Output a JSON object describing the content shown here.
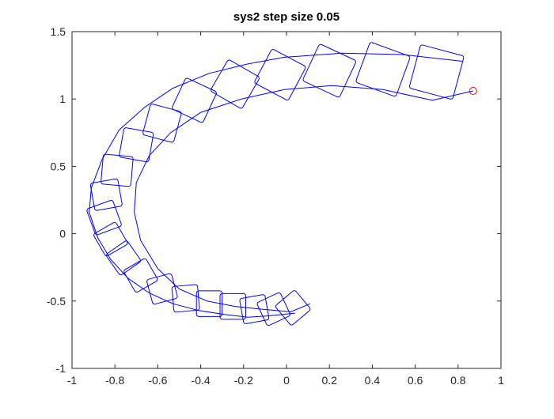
{
  "chart_data": {
    "type": "line",
    "title": "sys2 step size 0.05",
    "xlabel": "",
    "ylabel": "",
    "xlim": [
      -1,
      1
    ],
    "ylim": [
      -1,
      1.5
    ],
    "xticks": [
      -1,
      -0.8,
      -0.6,
      -0.4,
      -0.2,
      0,
      0.2,
      0.4,
      0.6,
      0.8,
      1
    ],
    "xtick_labels": [
      "-1",
      "-0.8",
      "-0.6",
      "-0.4",
      "-0.2",
      "0",
      "0.2",
      "0.4",
      "0.6",
      "0.8",
      "1"
    ],
    "yticks": [
      -1,
      -0.5,
      0,
      0.5,
      1,
      1.5
    ],
    "ytick_labels": [
      "-1",
      "-0.5",
      "0",
      "0.5",
      "1",
      "1.5"
    ],
    "grid": false,
    "legend": "none",
    "colors": {
      "series": "#0000ff",
      "marker": "#ff0000",
      "axes": "#262626"
    },
    "series": [
      {
        "role": "outer-envelope",
        "x": [
          0.82,
          0.54,
          0.26,
          -0.01,
          -0.18,
          -0.36,
          -0.53,
          -0.66,
          -0.78,
          -0.86,
          -0.91,
          -0.92,
          -0.88,
          -0.82,
          -0.74,
          -0.64,
          -0.53,
          -0.41,
          -0.29,
          -0.18,
          -0.08,
          0.04
        ],
        "y": [
          1.28,
          1.33,
          1.34,
          1.31,
          1.26,
          1.19,
          1.08,
          0.94,
          0.77,
          0.55,
          0.34,
          0.16,
          -0.03,
          -0.19,
          -0.33,
          -0.44,
          -0.52,
          -0.57,
          -0.6,
          -0.62,
          -0.61,
          -0.59
        ]
      },
      {
        "role": "inner-envelope",
        "x": [
          0.87,
          0.68,
          0.45,
          0.21,
          -0.01,
          -0.21,
          -0.4,
          -0.54,
          -0.64,
          -0.7,
          -0.71,
          -0.68,
          -0.6,
          -0.5,
          -0.37,
          -0.24,
          -0.12,
          0.02,
          0.11
        ],
        "y": [
          1.06,
          0.99,
          1.07,
          1.1,
          1.07,
          1.0,
          0.9,
          0.75,
          0.58,
          0.38,
          0.16,
          -0.05,
          -0.26,
          -0.41,
          -0.5,
          -0.54,
          -0.56,
          -0.58,
          -0.52
        ]
      }
    ],
    "squares": [
      {
        "x": 0.7,
        "y": 1.2,
        "size": 0.21,
        "angle": -15
      },
      {
        "x": 0.45,
        "y": 1.22,
        "size": 0.2,
        "angle": -20
      },
      {
        "x": 0.2,
        "y": 1.21,
        "size": 0.19,
        "angle": -25
      },
      {
        "x": -0.03,
        "y": 1.18,
        "size": 0.18,
        "angle": -28
      },
      {
        "x": -0.24,
        "y": 1.11,
        "size": 0.17,
        "angle": -30
      },
      {
        "x": -0.43,
        "y": 0.99,
        "size": 0.16,
        "angle": -25
      },
      {
        "x": -0.58,
        "y": 0.82,
        "size": 0.15,
        "angle": -15
      },
      {
        "x": -0.7,
        "y": 0.66,
        "size": 0.14,
        "angle": -10
      },
      {
        "x": -0.79,
        "y": 0.47,
        "size": 0.14,
        "angle": -5
      },
      {
        "x": -0.84,
        "y": 0.29,
        "size": 0.13,
        "angle": 10
      },
      {
        "x": -0.85,
        "y": 0.12,
        "size": 0.13,
        "angle": 20
      },
      {
        "x": -0.82,
        "y": -0.04,
        "size": 0.12,
        "angle": 30
      },
      {
        "x": -0.76,
        "y": -0.18,
        "size": 0.12,
        "angle": 35
      },
      {
        "x": -0.68,
        "y": -0.31,
        "size": 0.12,
        "angle": 30
      },
      {
        "x": -0.58,
        "y": -0.41,
        "size": 0.12,
        "angle": 15
      },
      {
        "x": -0.47,
        "y": -0.48,
        "size": 0.12,
        "angle": 5
      },
      {
        "x": -0.36,
        "y": -0.52,
        "size": 0.12,
        "angle": 0
      },
      {
        "x": -0.25,
        "y": -0.54,
        "size": 0.12,
        "angle": 0
      },
      {
        "x": -0.15,
        "y": -0.56,
        "size": 0.12,
        "angle": 10
      },
      {
        "x": -0.06,
        "y": -0.56,
        "size": 0.12,
        "angle": 25
      },
      {
        "x": 0.03,
        "y": -0.55,
        "size": 0.12,
        "angle": 40
      }
    ],
    "marker": {
      "x": 0.87,
      "y": 1.06,
      "shape": "circle"
    }
  }
}
